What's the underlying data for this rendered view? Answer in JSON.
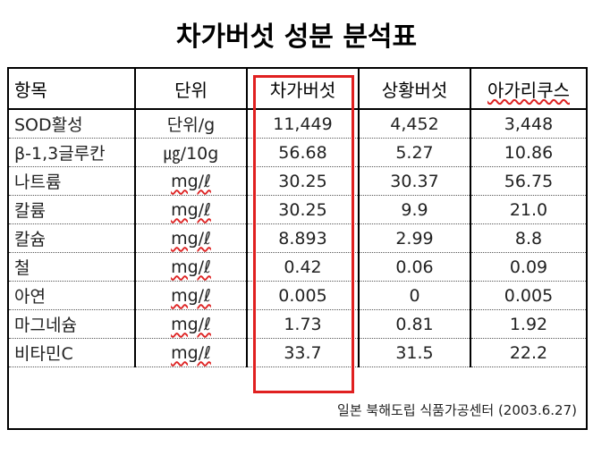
{
  "title": "차가버섯 성분 분석표",
  "table": {
    "headers": [
      "항목",
      "단위",
      "차가버섯",
      "상황버섯",
      "아가리쿠스"
    ],
    "rows": [
      [
        "SOD활성",
        "단위/g",
        "11,449",
        "4,452",
        "3,448"
      ],
      [
        "β-1,3글루칸",
        "㎍/10g",
        "56.68",
        "5.27",
        "10.86"
      ],
      [
        "나트륨",
        "mg/ℓ",
        "30.25",
        "30.37",
        "56.75"
      ],
      [
        "칼륨",
        "mg/ℓ",
        "30.25",
        "9.9",
        "21.0"
      ],
      [
        "칼슘",
        "mg/ℓ",
        "8.893",
        "2.99",
        "8.8"
      ],
      [
        "철",
        "mg/ℓ",
        "0.42",
        "0.06",
        "0.09"
      ],
      [
        "아연",
        "mg/ℓ",
        "0.005",
        "0",
        "0.005"
      ],
      [
        "마그네슘",
        "mg/ℓ",
        "1.73",
        "0.81",
        "1.92"
      ],
      [
        "비타민C",
        "mg/ℓ",
        "33.7",
        "31.5",
        "22.2"
      ]
    ],
    "footer": "일본 북해도립 식품가공센터 (2003.6.27)"
  }
}
